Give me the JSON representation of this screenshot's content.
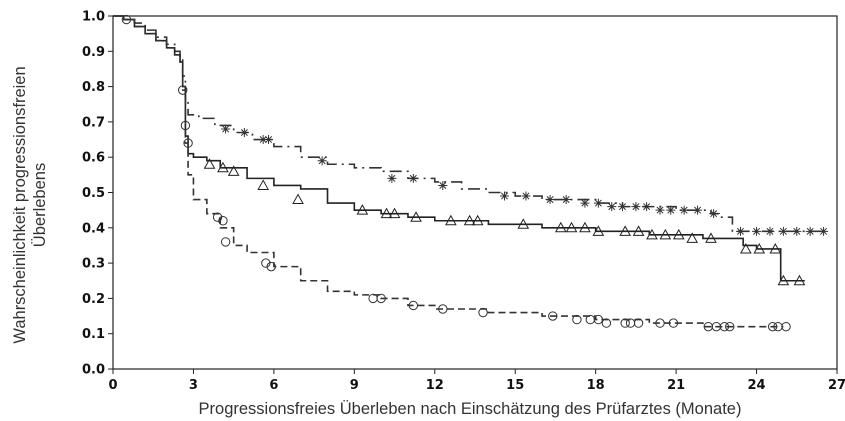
{
  "chart_data": {
    "type": "line",
    "subtype": "kaplan-meier step curves with censoring marks",
    "title": "",
    "xlabel": "Progressionsfreies Überleben nach Einschätzung des Prüfarztes (Monate)",
    "ylabel_lines": [
      "Wahrscheinlichkeit progressionsfreien",
      "Überlebens"
    ],
    "xlim": [
      0,
      27
    ],
    "ylim": [
      0.0,
      1.0
    ],
    "x_ticks": [
      "0",
      "3",
      "6",
      "9",
      "12",
      "15",
      "18",
      "21",
      "24",
      "27"
    ],
    "y_ticks": [
      "0.0",
      "0.1",
      "0.2",
      "0.3",
      "0.4",
      "0.5",
      "0.6",
      "0.7",
      "0.8",
      "0.9",
      "1.0"
    ],
    "grid": false,
    "legend": "none",
    "series": [
      {
        "line_style": "dash-dot",
        "marker": "star",
        "color": "#333333",
        "x": [
          0,
          0.4,
          0.8,
          1.2,
          1.6,
          2.0,
          2.3,
          2.5,
          2.6,
          2.7,
          2.8,
          3.2,
          3.8,
          4.5,
          5.2,
          6.0,
          7.0,
          8.0,
          9.0,
          10.0,
          11.0,
          12.0,
          13.0,
          14.0,
          15.0,
          16.0,
          17.0,
          18.0,
          19.0,
          20.0,
          21.0,
          21.8,
          22.3,
          22.6,
          22.8,
          23.0,
          23.1,
          24.0,
          25.0,
          26.5
        ],
        "y": [
          1.0,
          0.99,
          0.98,
          0.96,
          0.94,
          0.92,
          0.9,
          0.88,
          0.83,
          0.76,
          0.72,
          0.71,
          0.69,
          0.67,
          0.65,
          0.63,
          0.6,
          0.58,
          0.57,
          0.56,
          0.54,
          0.53,
          0.51,
          0.5,
          0.49,
          0.48,
          0.48,
          0.47,
          0.46,
          0.46,
          0.45,
          0.45,
          0.44,
          0.43,
          0.43,
          0.43,
          0.39,
          0.39,
          0.39,
          0.39
        ],
        "censored_x": [
          4.2,
          4.9,
          5.6,
          5.8,
          7.8,
          10.4,
          11.2,
          12.3,
          14.6,
          15.4,
          16.3,
          16.9,
          17.6,
          18.1,
          18.6,
          19.0,
          19.5,
          19.9,
          20.4,
          20.8,
          21.3,
          21.8,
          22.4,
          23.4,
          24.0,
          24.5,
          25.0,
          25.5,
          26.0,
          26.5
        ],
        "censored_y": [
          0.68,
          0.67,
          0.65,
          0.65,
          0.59,
          0.54,
          0.54,
          0.52,
          0.49,
          0.49,
          0.48,
          0.48,
          0.47,
          0.47,
          0.46,
          0.46,
          0.46,
          0.46,
          0.45,
          0.45,
          0.45,
          0.45,
          0.44,
          0.39,
          0.39,
          0.39,
          0.39,
          0.39,
          0.39,
          0.39
        ]
      },
      {
        "line_style": "solid",
        "marker": "triangle",
        "color": "#222222",
        "x": [
          0,
          0.4,
          0.8,
          1.2,
          1.6,
          2.0,
          2.3,
          2.5,
          2.6,
          2.7,
          2.8,
          3.0,
          3.5,
          4.0,
          5.0,
          6.0,
          7.0,
          8.0,
          9.0,
          10.0,
          11.0,
          12.0,
          13.0,
          14.0,
          15.0,
          16.0,
          17.0,
          18.0,
          19.0,
          20.0,
          21.0,
          22.0,
          23.0,
          23.5,
          24.0,
          24.5,
          24.9,
          25.8
        ],
        "y": [
          1.0,
          0.99,
          0.97,
          0.95,
          0.93,
          0.91,
          0.89,
          0.87,
          0.8,
          0.66,
          0.61,
          0.6,
          0.59,
          0.57,
          0.54,
          0.52,
          0.51,
          0.47,
          0.45,
          0.44,
          0.43,
          0.42,
          0.42,
          0.41,
          0.41,
          0.4,
          0.4,
          0.39,
          0.39,
          0.38,
          0.38,
          0.37,
          0.37,
          0.35,
          0.34,
          0.34,
          0.25,
          0.25
        ],
        "censored_x": [
          3.6,
          4.1,
          4.5,
          5.6,
          6.9,
          9.3,
          10.2,
          10.5,
          11.3,
          12.6,
          13.3,
          13.6,
          15.3,
          16.7,
          17.1,
          17.6,
          18.1,
          19.1,
          19.6,
          20.1,
          20.6,
          21.1,
          21.6,
          22.3,
          23.6,
          24.1,
          24.7,
          25.0,
          25.6
        ],
        "censored_y": [
          0.58,
          0.57,
          0.56,
          0.52,
          0.48,
          0.45,
          0.44,
          0.44,
          0.43,
          0.42,
          0.42,
          0.42,
          0.41,
          0.4,
          0.4,
          0.4,
          0.39,
          0.39,
          0.39,
          0.38,
          0.38,
          0.38,
          0.37,
          0.37,
          0.34,
          0.34,
          0.34,
          0.25,
          0.25
        ]
      },
      {
        "line_style": "dashed",
        "marker": "circle",
        "color": "#333333",
        "x": [
          0,
          0.4,
          0.8,
          1.2,
          1.6,
          2.0,
          2.3,
          2.5,
          2.6,
          2.7,
          2.8,
          3.0,
          3.5,
          4.0,
          4.5,
          5.0,
          6.0,
          7.0,
          8.0,
          9.0,
          10.0,
          11.0,
          12.0,
          14.0,
          16.0,
          18.0,
          20.0,
          22.0,
          25.0
        ],
        "y": [
          1.0,
          0.99,
          0.97,
          0.95,
          0.93,
          0.91,
          0.89,
          0.87,
          0.79,
          0.64,
          0.55,
          0.48,
          0.44,
          0.4,
          0.35,
          0.33,
          0.29,
          0.25,
          0.22,
          0.21,
          0.2,
          0.18,
          0.17,
          0.16,
          0.15,
          0.14,
          0.13,
          0.12,
          0.12
        ],
        "censored_x": [
          0.5,
          2.6,
          2.7,
          2.8,
          3.9,
          4.1,
          4.2,
          5.7,
          5.9,
          9.7,
          10.0,
          11.2,
          12.3,
          13.8,
          16.4,
          17.3,
          17.8,
          18.1,
          18.4,
          19.1,
          19.3,
          19.6,
          20.4,
          20.9,
          22.2,
          22.5,
          22.8,
          23.0,
          24.6,
          24.8,
          25.1
        ],
        "censored_y": [
          0.99,
          0.79,
          0.69,
          0.64,
          0.43,
          0.42,
          0.36,
          0.3,
          0.29,
          0.2,
          0.2,
          0.18,
          0.17,
          0.16,
          0.15,
          0.14,
          0.14,
          0.14,
          0.13,
          0.13,
          0.13,
          0.13,
          0.13,
          0.13,
          0.12,
          0.12,
          0.12,
          0.12,
          0.12,
          0.12,
          0.12
        ]
      }
    ]
  }
}
